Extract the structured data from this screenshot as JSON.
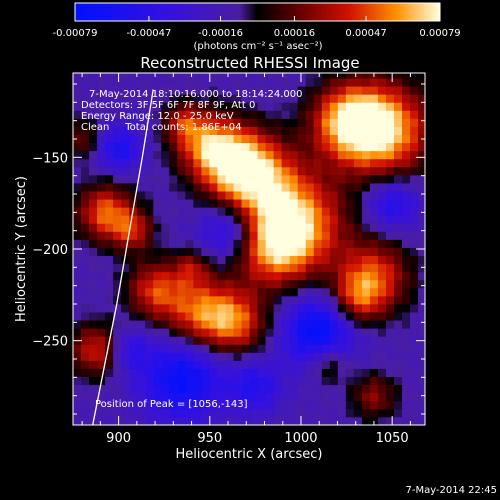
{
  "chart_data": {
    "type": "heatmap",
    "title": "Reconstructed RHESSI Image",
    "xlabel": "Heliocentric X (arcsec)",
    "ylabel": "Heliocentric Y (arcsec)",
    "xlim": [
      875,
      1068
    ],
    "ylim": [
      -296,
      -104
    ],
    "x_ticks": [
      900,
      950,
      1000,
      1050
    ],
    "y_ticks": [
      -150,
      -200,
      -250
    ],
    "colorbar": {
      "ticks": [
        -0.00079,
        -0.00047,
        -0.00016,
        0.00016,
        0.00047,
        0.00079
      ],
      "tick_labels": [
        "-0.00079",
        "-0.00047",
        "-0.00016",
        "0.00016",
        "0.00047",
        "0.00079"
      ],
      "units": "(photons cm⁻² s⁻¹ asec⁻²)",
      "range": [
        -0.00079,
        0.00079
      ]
    },
    "annotations": [
      "7-May-2014 18:10:16.000 to 18:14:24.000",
      "Detectors: 3F 5F 6F 7F 8F 9F, Att 0",
      "Energy Range: 12.0 - 25.0 keV",
      "Clean     Total counts: 1.86E+04",
      "Position of Peak = [1056,-143]"
    ],
    "peak_position": [
      1056,
      -143
    ],
    "limb_curve": {
      "x": [
        919,
        913,
        906,
        899,
        891,
        884
      ],
      "y": [
        -113,
        -150,
        -190,
        -230,
        -270,
        -305
      ]
    },
    "hot_spots": [
      {
        "x": 1045,
        "y": -135,
        "r": 18,
        "v": 0.00079
      },
      {
        "x": 1025,
        "y": -130,
        "r": 14,
        "v": 0.0006
      },
      {
        "x": 962,
        "y": -152,
        "r": 14,
        "v": 0.0007
      },
      {
        "x": 978,
        "y": -162,
        "r": 16,
        "v": 0.00055
      },
      {
        "x": 945,
        "y": -140,
        "r": 12,
        "v": 0.00045
      },
      {
        "x": 1000,
        "y": -185,
        "r": 18,
        "v": 0.00062
      },
      {
        "x": 985,
        "y": -200,
        "r": 15,
        "v": 0.00058
      },
      {
        "x": 1040,
        "y": -215,
        "r": 14,
        "v": 0.00055
      },
      {
        "x": 1030,
        "y": -228,
        "r": 10,
        "v": 0.0004
      },
      {
        "x": 893,
        "y": -180,
        "r": 11,
        "v": 0.0006
      },
      {
        "x": 908,
        "y": -190,
        "r": 8,
        "v": 0.0004
      },
      {
        "x": 920,
        "y": -222,
        "r": 11,
        "v": 0.0005
      },
      {
        "x": 945,
        "y": -235,
        "r": 14,
        "v": 0.0006
      },
      {
        "x": 965,
        "y": -240,
        "r": 12,
        "v": 0.0005
      },
      {
        "x": 888,
        "y": -255,
        "r": 10,
        "v": 0.0005
      },
      {
        "x": 1015,
        "y": -262,
        "r": 8,
        "v": 0.00035
      },
      {
        "x": 1040,
        "y": -280,
        "r": 9,
        "v": 0.00035
      },
      {
        "x": 935,
        "y": -130,
        "r": 7,
        "v": 0.0003
      },
      {
        "x": 940,
        "y": -210,
        "r": 7,
        "v": 0.0003
      },
      {
        "x": 880,
        "y": -140,
        "r": 8,
        "v": 0.0003
      }
    ],
    "cold_spots": [
      {
        "x": 1010,
        "y": -245,
        "r": 14,
        "v": -0.0006
      },
      {
        "x": 935,
        "y": -270,
        "r": 16,
        "v": -0.00055
      },
      {
        "x": 900,
        "y": -145,
        "r": 9,
        "v": -0.0004
      },
      {
        "x": 960,
        "y": -190,
        "r": 11,
        "v": -0.0004
      },
      {
        "x": 1050,
        "y": -175,
        "r": 10,
        "v": -0.0004
      },
      {
        "x": 975,
        "y": -275,
        "r": 10,
        "v": -0.00035
      },
      {
        "x": 905,
        "y": -255,
        "r": 8,
        "v": -0.0003
      }
    ]
  },
  "footer_timestamp": "7-May-2014 22:45"
}
